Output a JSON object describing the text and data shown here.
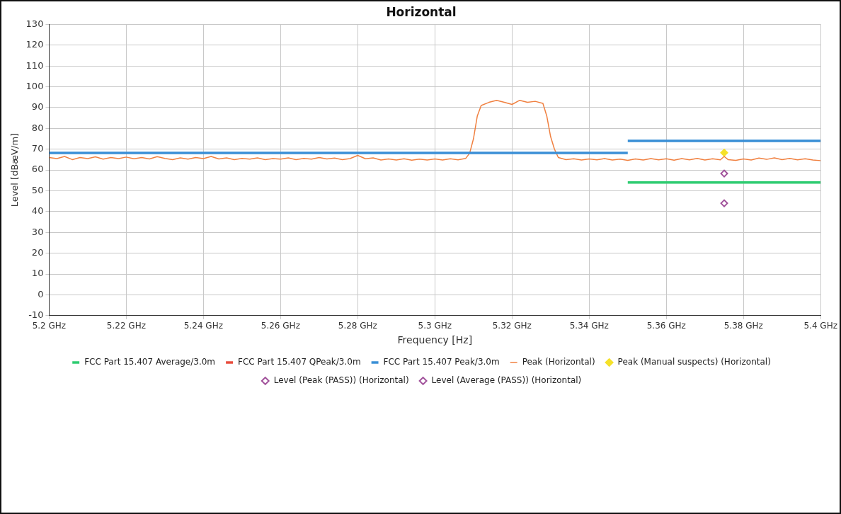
{
  "chart_data": {
    "type": "line",
    "title": "Horizontal",
    "xlabel": "Frequency [Hz]",
    "ylabel": "Level [dBæV/m]",
    "xlim": [
      5.2,
      5.4
    ],
    "xticks": [
      {
        "value": 5.2,
        "label": "5.2 GHz"
      },
      {
        "value": 5.22,
        "label": "5.22 GHz"
      },
      {
        "value": 5.24,
        "label": "5.24 GHz"
      },
      {
        "value": 5.26,
        "label": "5.26 GHz"
      },
      {
        "value": 5.28,
        "label": "5.28 GHz"
      },
      {
        "value": 5.3,
        "label": "5.3 GHz"
      },
      {
        "value": 5.32,
        "label": "5.32 GHz"
      },
      {
        "value": 5.34,
        "label": "5.34 GHz"
      },
      {
        "value": 5.36,
        "label": "5.36 GHz"
      },
      {
        "value": 5.38,
        "label": "5.38 GHz"
      },
      {
        "value": 5.4,
        "label": "5.4 GHz"
      }
    ],
    "ylim": [
      -10,
      130
    ],
    "yticks": [
      -10,
      0,
      10,
      20,
      30,
      40,
      50,
      60,
      70,
      80,
      90,
      100,
      110,
      120,
      130
    ],
    "grid": true,
    "legend": "bottom",
    "series": [
      {
        "name": "FCC Part 15.407 Average/3.0m",
        "marker": "none",
        "color": "#2ecc71",
        "x": [
          5.35,
          5.4
        ],
        "values": [
          54,
          54
        ]
      },
      {
        "name": "FCC Part 15.407 QPeak/3.0m",
        "marker": "none",
        "color": "#e84c3d"
      },
      {
        "name": "FCC Part 15.407 Peak/3.0m",
        "marker": "none",
        "color": "#3a8fd6",
        "x": [
          5.2,
          5.35,
          5.35,
          5.4
        ],
        "values": [
          68.2,
          68.2,
          74,
          74
        ]
      },
      {
        "name": "Peak (Horizontal)",
        "marker": "none",
        "color": "#f08040",
        "x": [
          5.2,
          5.202,
          5.204,
          5.206,
          5.208,
          5.21,
          5.212,
          5.214,
          5.216,
          5.218,
          5.22,
          5.222,
          5.224,
          5.226,
          5.228,
          5.23,
          5.232,
          5.234,
          5.236,
          5.238,
          5.24,
          5.242,
          5.244,
          5.246,
          5.248,
          5.25,
          5.252,
          5.254,
          5.256,
          5.258,
          5.26,
          5.262,
          5.264,
          5.266,
          5.268,
          5.27,
          5.272,
          5.274,
          5.276,
          5.278,
          5.28,
          5.282,
          5.284,
          5.286,
          5.288,
          5.29,
          5.292,
          5.294,
          5.296,
          5.298,
          5.3,
          5.302,
          5.304,
          5.306,
          5.308,
          5.309,
          5.31,
          5.311,
          5.312,
          5.314,
          5.316,
          5.318,
          5.32,
          5.322,
          5.324,
          5.326,
          5.328,
          5.329,
          5.33,
          5.331,
          5.332,
          5.334,
          5.336,
          5.338,
          5.34,
          5.342,
          5.344,
          5.346,
          5.348,
          5.35,
          5.352,
          5.354,
          5.356,
          5.358,
          5.36,
          5.362,
          5.364,
          5.366,
          5.368,
          5.37,
          5.372,
          5.374,
          5.375,
          5.376,
          5.378,
          5.38,
          5.382,
          5.384,
          5.386,
          5.388,
          5.39,
          5.392,
          5.394,
          5.396,
          5.398,
          5.4
        ],
        "values": [
          66,
          65.5,
          66.5,
          65,
          66,
          65.5,
          66.3,
          65.2,
          66,
          65.5,
          66.2,
          65.4,
          66,
          65.3,
          66.4,
          65.6,
          65,
          65.8,
          65.2,
          66,
          65.5,
          66.5,
          65.3,
          65.8,
          65,
          65.6,
          65.2,
          65.8,
          65,
          65.5,
          65.2,
          65.8,
          65,
          65.6,
          65.2,
          66,
          65.3,
          65.7,
          65,
          65.5,
          67,
          65.4,
          65.8,
          64.8,
          65.3,
          64.8,
          65.4,
          64.7,
          65.2,
          64.8,
          65.3,
          64.8,
          65.4,
          64.9,
          65.6,
          68,
          75,
          86,
          91,
          92.5,
          93.5,
          92.5,
          91.5,
          93.5,
          92.5,
          93,
          92,
          86,
          76,
          70,
          66,
          65,
          65.4,
          64.8,
          65.3,
          64.9,
          65.5,
          64.8,
          65.2,
          64.6,
          65.3,
          64.8,
          65.5,
          64.9,
          65.4,
          64.7,
          65.5,
          64.9,
          65.6,
          64.8,
          65.4,
          64.9,
          66.5,
          65,
          64.6,
          65.3,
          64.8,
          65.7,
          65.1,
          65.8,
          65,
          65.6,
          64.9,
          65.4,
          64.8,
          64.5
        ]
      },
      {
        "name": "Peak (Manual suspects) (Horizontal)",
        "type": "scatter",
        "marker": "diamond",
        "color": "#f5e12a",
        "x": [
          5.375
        ],
        "values": [
          68.3
        ]
      },
      {
        "name": "Level (Peak (PASS)) (Horizontal)",
        "type": "scatter",
        "marker": "diamond",
        "color": "#a0509a",
        "x": [
          5.375
        ],
        "values": [
          58.3
        ]
      },
      {
        "name": "Level (Average (PASS)) (Horizontal)",
        "type": "scatter",
        "marker": "diamond",
        "color": "#a0509a",
        "x": [
          5.375
        ],
        "values": [
          44
        ]
      }
    ]
  }
}
